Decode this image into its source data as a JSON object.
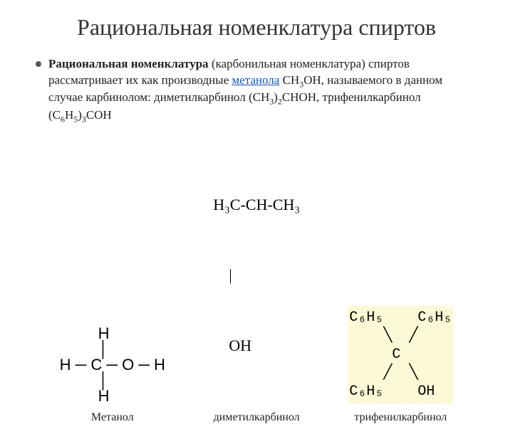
{
  "title": "Рациональная номенклатура спиртов",
  "paragraph": {
    "lead_bold": "Рациональная номенклатура",
    "part1": " (карбонильная номенклатура) спиртов рассматривает их как производные ",
    "link_text": "метанола",
    "part2": " СН",
    "sub1": "3",
    "part3": "ОН, называемого в данном случае карбинолом: диметилкарбинол (СН",
    "sub2": "3",
    "part4": ")",
    "sub3": "2",
    "part5": "СНОН, трифенилкарбинол (С",
    "sub4": "6",
    "part6": "Н",
    "sub5": "5",
    "part7": ")",
    "sub6": "3",
    "part8": "СОН"
  },
  "structures": {
    "methanol": {
      "caption": "Метанол",
      "r1": "    H        ",
      "r2": "    │        ",
      "r3": "H ─ C ─ O ─ H",
      "r4": "    │        ",
      "r5": "    H        "
    },
    "dimethyl": {
      "caption": "диметилкарбинол",
      "r1": "H₃C-CH-CH₃",
      "r2": "    |",
      "r3": "    OH"
    },
    "triphenyl": {
      "caption": "трифенилкарбинол",
      "line1a": "C₆H₅",
      "line1b": "C₆H₅",
      "slash1": "╲",
      "slash2": "╱",
      "mid": "C",
      "line2a": "C₆H₅",
      "line2b": "OH"
    }
  }
}
